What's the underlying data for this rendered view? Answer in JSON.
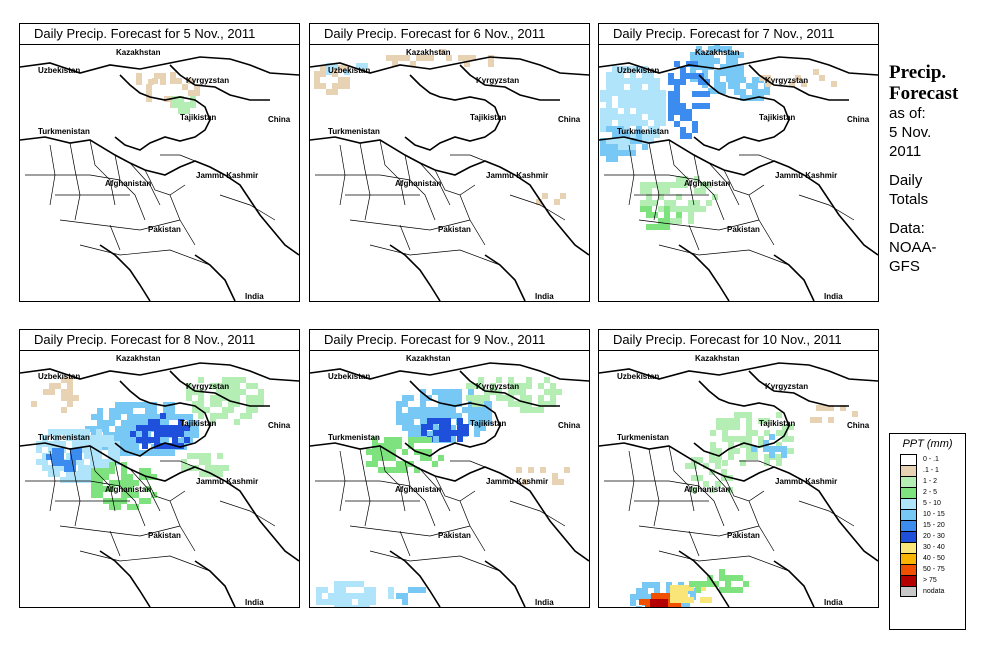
{
  "panels": [
    {
      "title": "Daily Precip. Forecast for  5 Nov., 2011",
      "day": 5
    },
    {
      "title": "Daily Precip. Forecast for  6 Nov., 2011",
      "day": 6
    },
    {
      "title": "Daily Precip. Forecast for  7 Nov., 2011",
      "day": 7
    },
    {
      "title": "Daily Precip. Forecast for  8 Nov., 2011",
      "day": 8
    },
    {
      "title": "Daily Precip. Forecast for  9 Nov., 2011",
      "day": 9
    },
    {
      "title": "Daily Precip. Forecast for  10 Nov., 2011",
      "day": 10
    }
  ],
  "map_labels": {
    "kazakhstan": "Kazakhstan",
    "uzbekistan": "Uzbekistan",
    "kyrgyzstan": "Kyrgyzstan",
    "tajikistan": "Tajikistan",
    "turkmenistan": "Turkmenistan",
    "china": "China",
    "afghanistan": "Afghanistan",
    "jammu_kashmir": "Jammu Kashmir",
    "pakistan": "Pakistan",
    "india": "India"
  },
  "side": {
    "title_line1": "Precip.",
    "title_line2": "Forecast",
    "asof_line1": "as of:",
    "asof_line2": "5 Nov.",
    "asof_line3": "2011",
    "daily_line1": "Daily",
    "daily_line2": "Totals",
    "data_line1": "Data:",
    "data_line2": "NOAA-",
    "data_line3": "GFS"
  },
  "legend": {
    "title": "PPT (mm)",
    "items": [
      {
        "label": "0 - .1",
        "color": "#ffffff"
      },
      {
        "label": ".1 - 1",
        "color": "#e8d2b4"
      },
      {
        "label": "1 - 2",
        "color": "#b4eeb4"
      },
      {
        "label": "2 - 5",
        "color": "#7ee37e"
      },
      {
        "label": "5 - 10",
        "color": "#b0e4fa"
      },
      {
        "label": "10 - 15",
        "color": "#78c8f5"
      },
      {
        "label": "15 - 20",
        "color": "#3c8cf0"
      },
      {
        "label": "20 - 30",
        "color": "#1e50dc"
      },
      {
        "label": "30 - 40",
        "color": "#fae678"
      },
      {
        "label": "40 - 50",
        "color": "#fab400"
      },
      {
        "label": "50 - 75",
        "color": "#f05000"
      },
      {
        "label": "> 75",
        "color": "#b40000"
      },
      {
        "label": "nodata",
        "color": "#c8c8c8"
      }
    ]
  }
}
